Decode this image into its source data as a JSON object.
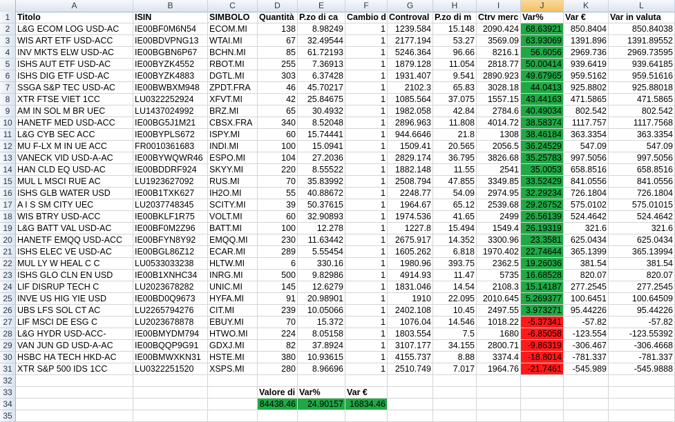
{
  "columns": [
    "A",
    "B",
    "C",
    "D",
    "E",
    "F",
    "G",
    "H",
    "I",
    "J",
    "K",
    "L"
  ],
  "selected_column": "J",
  "colors": {
    "positive": "#1fa945",
    "negative": "#ff1a1a"
  },
  "header": [
    "Titolo",
    "ISIN",
    "SIMBOLO",
    "Quantità",
    "P.zo di ca",
    "Cambio d",
    "Controval",
    "P.zo di m",
    "Ctrv merc",
    "Var%",
    "Var €",
    "Var in valuta"
  ],
  "rows": [
    [
      "L&G ECOM LOG USD-AC",
      "IE00BF0M6N54",
      "ECOM.MI",
      "138",
      "8.98249",
      "1",
      "1239.584",
      "15.148",
      "2090.424",
      "68.63921",
      "850.8404",
      "850.84038"
    ],
    [
      "WIS ART ETF USD-ACC",
      "IE00BDVPNG13",
      "WTAI.MI",
      "67",
      "32.49544",
      "1",
      "2177.194",
      "53.27",
      "3569.09",
      "63.93069",
      "1391.896",
      "1391.89552"
    ],
    [
      "INV MKTS ELW USD-AC",
      "IE00BGBN6P67",
      "BCHN.MI",
      "85",
      "61.72193",
      "1",
      "5246.364",
      "96.66",
      "8216.1",
      "56.6056",
      "2969.736",
      "2969.73595"
    ],
    [
      "ISHS AUT ETF USD-AC",
      "IE00BYZK4552",
      "RBOT.MI",
      "255",
      "7.36913",
      "1",
      "1879.128",
      "11.054",
      "2818.77",
      "50.00414",
      "939.6419",
      "939.64185"
    ],
    [
      "ISHS DIG ETF USD-AC",
      "IE00BYZK4883",
      "DGTL.MI",
      "303",
      "6.37428",
      "1",
      "1931.407",
      "9.541",
      "2890.923",
      "49.67965",
      "959.5162",
      "959.51616"
    ],
    [
      "SSGA S&P TEC USD-AC",
      "IE00BWBXM948",
      "ZPDT.FRA",
      "46",
      "45.70217",
      "1",
      "2102.3",
      "65.83",
      "3028.18",
      "44.0413",
      "925.8802",
      "925.88018"
    ],
    [
      "XTR FTSE VIET 1CC",
      "LU0322252924",
      "XFVT.MI",
      "42",
      "25.84675",
      "1",
      "1085.564",
      "37.075",
      "1557.15",
      "43.44163",
      "471.5865",
      "471.5865"
    ],
    [
      "AM IN SOL M BR UEC",
      "LU1437024992",
      "BRZ.MI",
      "65",
      "30.4932",
      "1",
      "1982.058",
      "42.84",
      "2784.6",
      "40.49034",
      "802.542",
      "802.542"
    ],
    [
      "HANETF MED USD-ACC",
      "IE00BG5J1M21",
      "CBSX.FRA",
      "340",
      "8.52048",
      "1",
      "2896.963",
      "11.808",
      "4014.72",
      "38.58374",
      "1117.757",
      "1117.7568"
    ],
    [
      "L&G CYB SEC ACC",
      "IE00BYPLS672",
      "ISPY.MI",
      "60",
      "15.74441",
      "1",
      "944.6646",
      "21.8",
      "1308",
      "38.46184",
      "363.3354",
      "363.3354"
    ],
    [
      "MU F-LX M IN UE ACC",
      "FR0010361683",
      "INDI.MI",
      "100",
      "15.0941",
      "1",
      "1509.41",
      "20.565",
      "2056.5",
      "36.24529",
      "547.09",
      "547.09"
    ],
    [
      "VANECK VID USD-A-AC",
      "IE00BYWQWR46",
      "ESPO.MI",
      "104",
      "27.2036",
      "1",
      "2829.174",
      "36.795",
      "3826.68",
      "35.25783",
      "997.5056",
      "997.5056"
    ],
    [
      "HAN CLD EQ USD-AC",
      "IE00BDDRF924",
      "SKYY.MI",
      "220",
      "8.55522",
      "1",
      "1882.148",
      "11.55",
      "2541",
      "35.0053",
      "658.8516",
      "658.8516"
    ],
    [
      "MUL L MSCI RUE AC",
      "LU1923627092",
      "RUS.MI",
      "70",
      "35.83992",
      "1",
      "2508.794",
      "47.855",
      "3349.85",
      "33.52429",
      "841.0556",
      "841.0556"
    ],
    [
      "ISHS GLB WATER USD",
      "IE00B1TXK627",
      "IH2O.MI",
      "55",
      "40.88672",
      "1",
      "2248.77",
      "54.09",
      "2974.95",
      "32.29234",
      "726.1804",
      "726.1804"
    ],
    [
      "A I S SM CITY UEC",
      "LU2037748345",
      "SCITY.MI",
      "39",
      "50.37615",
      "1",
      "1964.67",
      "65.12",
      "2539.68",
      "29.26752",
      "575.0102",
      "575.01015"
    ],
    [
      "WIS BTRY USD-ACC",
      "IE00BKLF1R75",
      "VOLT.MI",
      "60",
      "32.90893",
      "1",
      "1974.536",
      "41.65",
      "2499",
      "26.56139",
      "524.4642",
      "524.4642"
    ],
    [
      "L&G BATT VAL USD-AC",
      "IE00BF0M2Z96",
      "BATT.MI",
      "100",
      "12.278",
      "1",
      "1227.8",
      "15.494",
      "1549.4",
      "26.19319",
      "321.6",
      "321.6"
    ],
    [
      "HANETF EMQQ USD-ACC",
      "IE00BFYN8Y92",
      "EMQQ.MI",
      "230",
      "11.63442",
      "1",
      "2675.917",
      "14.352",
      "3300.96",
      "23.3581",
      "625.0434",
      "625.0434"
    ],
    [
      "ISHS ELEC VE USD-AC",
      "IE00BGL86Z12",
      "ECAR.MI",
      "289",
      "5.55454",
      "1",
      "1605.262",
      "6.818",
      "1970.402",
      "22.74644",
      "365.1399",
      "365.13994"
    ],
    [
      "MUL LY W HEAL C C",
      "LU0533033238",
      "HLTW.MI",
      "6",
      "330.16",
      "1",
      "1980.96",
      "393.75",
      "2362.5",
      "19.26036",
      "381.54",
      "381.54"
    ],
    [
      "ISHS GLO CLN EN USD",
      "IE00B1XNHC34",
      "INRG.MI",
      "500",
      "9.82986",
      "1",
      "4914.93",
      "11.47",
      "5735",
      "16.68528",
      "820.07",
      "820.07"
    ],
    [
      "LIF DISRUP TECH C",
      "LU2023678282",
      "UNIC.MI",
      "145",
      "12.6279",
      "1",
      "1831.046",
      "14.54",
      "2108.3",
      "15.14187",
      "277.2545",
      "277.2545"
    ],
    [
      "INVE US HIG YIE USD",
      "IE00BD0Q9673",
      "HYFA.MI",
      "91",
      "20.98901",
      "1",
      "1910",
      "22.095",
      "2010.645",
      "5.269377",
      "100.6451",
      "100.64509"
    ],
    [
      "UBS LFS SOL CT AC",
      "LU2265794276",
      "CIT.MI",
      "239",
      "10.05066",
      "1",
      "2402.108",
      "10.45",
      "2497.55",
      "3.973271",
      "95.44226",
      "95.44226"
    ],
    [
      "LIF MSCI DE ESG C",
      "LU2023678878",
      "EBUY.MI",
      "70",
      "15.372",
      "1",
      "1076.04",
      "14.546",
      "1018.22",
      "-5.37341",
      "-57.82",
      "-57.82"
    ],
    [
      "L&G HYDR USD-ACC-",
      "IE00BMYDM794",
      "HTWO.MI",
      "224",
      "8.05158",
      "1",
      "1803.554",
      "7.5",
      "1680",
      "-6.85058",
      "-123.554",
      "-123.55392"
    ],
    [
      "VAN JUN GD USD-A-AC",
      "IE00BQQP9G91",
      "GDXJ.MI",
      "82",
      "37.8924",
      "1",
      "3107.177",
      "34.155",
      "2800.71",
      "-9.86319",
      "-306.467",
      "-306.4668"
    ],
    [
      "HSBC HA TECH HKD-AC",
      "IE00BMWXKN31",
      "HSTE.MI",
      "380",
      "10.93615",
      "1",
      "4155.737",
      "8.88",
      "3374.4",
      "-18.8014",
      "-781.337",
      "-781.337"
    ],
    [
      "XTR S&P 500 IDS 1CC",
      "LU0322251520",
      "XSPS.MI",
      "280",
      "8.96696",
      "1",
      "2510.749",
      "7.017",
      "1964.76",
      "-21.7461",
      "-545.989",
      "-545.9888"
    ]
  ],
  "summary": {
    "labels": [
      "Valore di",
      "Var%",
      "Var €"
    ],
    "values": [
      "84438.46",
      "24.90157",
      "16834.46"
    ]
  },
  "row_numbers": [
    "1",
    "2",
    "3",
    "4",
    "5",
    "6",
    "7",
    "8",
    "9",
    "10",
    "11",
    "12",
    "13",
    "14",
    "15",
    "16",
    "17",
    "18",
    "19",
    "20",
    "21",
    "22",
    "23",
    "24",
    "25",
    "26",
    "27",
    "28",
    "29",
    "30",
    "31",
    "32",
    "33",
    "34",
    "35"
  ]
}
